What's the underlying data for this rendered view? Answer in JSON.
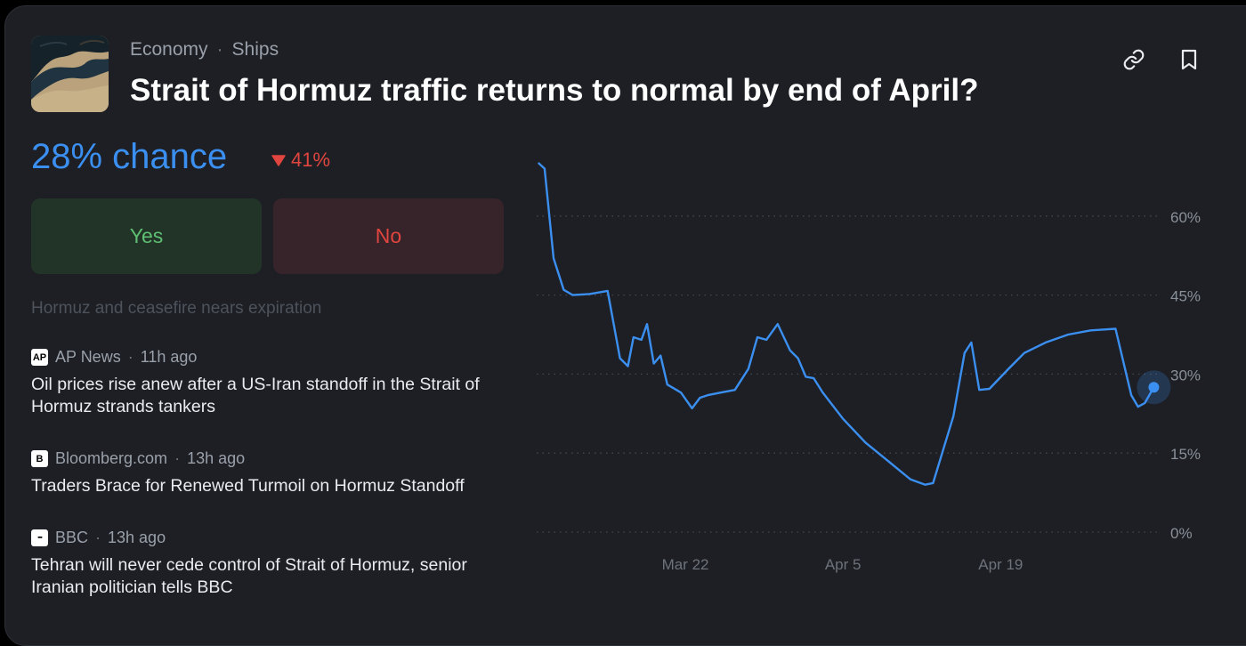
{
  "market": {
    "category": "Economy",
    "subcategory": "Ships",
    "title": "Strait of Hormuz traffic returns to normal by end of April?",
    "chance_text": "28% chance",
    "change_text": "41%",
    "change_direction": "down",
    "yes_label": "Yes",
    "no_label": "No"
  },
  "summary_text": "Hormuz and ceasefire nears expiration",
  "news": [
    {
      "source": "AP News",
      "logo": "AP",
      "time": "11h ago",
      "headline": "Oil prices rise anew after a US-Iran standoff in the Strait of Hormuz strands tankers"
    },
    {
      "source": "Bloomberg.com",
      "logo": "B",
      "time": "13h ago",
      "headline": "Traders Brace for Renewed Turmoil on Hormuz Standoff"
    },
    {
      "source": "BBC",
      "logo": "▪▪▪",
      "time": "13h ago",
      "headline": "Tehran will never cede control of Strait of Hormuz, senior Iranian politician tells BBC"
    }
  ],
  "icons": {
    "link": "link-icon",
    "bookmark": "bookmark-icon",
    "trend": "triangle-down-icon"
  },
  "colors": {
    "accent": "#3b8ff0",
    "yes": "#5fbf73",
    "no": "#e0453f",
    "background": "#1d1f24"
  },
  "chart_data": {
    "type": "line",
    "series": [
      {
        "points": [
          [
            0,
            70
          ],
          [
            0.5,
            69
          ],
          [
            1.3,
            52
          ],
          [
            2.2,
            46
          ],
          [
            3,
            45
          ],
          [
            4.5,
            45.2
          ],
          [
            6.1,
            45.8
          ],
          [
            7.2,
            33
          ],
          [
            7.9,
            31.5
          ],
          [
            8.4,
            37
          ],
          [
            9.1,
            36.5
          ],
          [
            9.6,
            39.5
          ],
          [
            10.2,
            32
          ],
          [
            10.8,
            33.5
          ],
          [
            11.4,
            28
          ],
          [
            12.6,
            26.5
          ],
          [
            13.6,
            23.5
          ],
          [
            14.3,
            25.5
          ],
          [
            15,
            26
          ],
          [
            16.2,
            26.5
          ],
          [
            17.4,
            27
          ],
          [
            18.6,
            31
          ],
          [
            19.4,
            37
          ],
          [
            20.2,
            36.5
          ],
          [
            21.2,
            39.5
          ],
          [
            22.3,
            34.5
          ],
          [
            23,
            33
          ],
          [
            23.7,
            29.5
          ],
          [
            24.4,
            29.2
          ],
          [
            25.2,
            26.5
          ],
          [
            27,
            21.5
          ],
          [
            29,
            17
          ],
          [
            31,
            13.5
          ],
          [
            33,
            10
          ],
          [
            34.3,
            9
          ],
          [
            35,
            9.3
          ],
          [
            36.8,
            22
          ],
          [
            37.8,
            34
          ],
          [
            38.4,
            36
          ],
          [
            39.1,
            27
          ],
          [
            40,
            27.2
          ],
          [
            41.7,
            31
          ],
          [
            43.1,
            34
          ],
          [
            45,
            36
          ],
          [
            47,
            37.5
          ],
          [
            49,
            38.3
          ],
          [
            50.5,
            38.5
          ],
          [
            51.2,
            38.6
          ],
          [
            52.6,
            26
          ],
          [
            53.2,
            23.8
          ],
          [
            53.8,
            24.5
          ],
          [
            54.6,
            27.5
          ]
        ]
      }
    ],
    "x_tick_labels": [
      "Mar 22",
      "Apr 5",
      "Apr 19"
    ],
    "x_tick_positions": [
      13,
      27,
      41
    ],
    "xlim": [
      -0.2,
      55.2
    ],
    "ylim": [
      0,
      75
    ],
    "y_ticks": [
      0,
      15,
      30,
      45,
      60
    ],
    "y_tick_labels": [
      "0%",
      "15%",
      "30%",
      "45%",
      "60%"
    ],
    "grid": true,
    "color": "#3b8ff0"
  }
}
